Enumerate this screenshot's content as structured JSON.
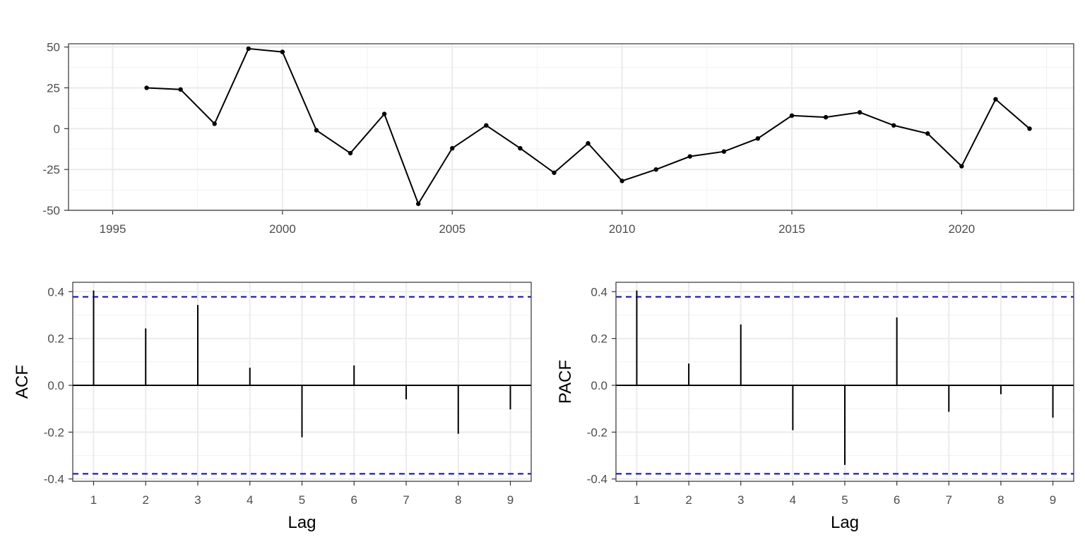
{
  "chart_data": [
    {
      "type": "line",
      "x": [
        1996,
        1997,
        1998,
        1999,
        2000,
        2001,
        2002,
        2003,
        2004,
        2005,
        2006,
        2007,
        2008,
        2009,
        2010,
        2011,
        2012,
        2013,
        2014,
        2015,
        2016,
        2017,
        2018,
        2019,
        2020,
        2021,
        2022
      ],
      "y": [
        25,
        24,
        3,
        49,
        47,
        -1,
        -15,
        9,
        -46,
        -12,
        2,
        -12,
        -27,
        -9,
        -32,
        -25,
        -17,
        -14,
        -6,
        8,
        7,
        10,
        2,
        -3,
        -23,
        18,
        0
      ],
      "xticks": [
        "1995",
        "2000",
        "2005",
        "2010",
        "2015",
        "2020"
      ],
      "yticks": [
        "-50",
        "-25",
        "0",
        "25",
        "50"
      ],
      "xlim": [
        1993.7,
        2023.3
      ],
      "ylim": [
        -50,
        52
      ],
      "xlabel": "",
      "ylabel": "",
      "grid": true
    },
    {
      "type": "bar",
      "categories": [
        "1",
        "2",
        "3",
        "4",
        "5",
        "6",
        "7",
        "8",
        "9"
      ],
      "values": [
        0.405,
        0.243,
        0.343,
        0.075,
        -0.222,
        0.085,
        -0.06,
        -0.207,
        -0.103
      ],
      "ci": 0.378,
      "ylabel": "ACF",
      "xlabel": "Lag",
      "yticks": [
        "-0.4",
        "-0.2",
        "0.0",
        "0.2",
        "0.4"
      ],
      "ylim": [
        -0.41,
        0.44
      ],
      "grid": true
    },
    {
      "type": "bar",
      "categories": [
        "1",
        "2",
        "3",
        "4",
        "5",
        "6",
        "7",
        "8",
        "9"
      ],
      "values": [
        0.405,
        0.093,
        0.26,
        -0.192,
        -0.34,
        0.29,
        -0.113,
        -0.038,
        -0.138
      ],
      "ci": 0.378,
      "ylabel": "PACF",
      "xlabel": "Lag",
      "yticks": [
        "-0.4",
        "-0.2",
        "0.0",
        "0.2",
        "0.4"
      ],
      "ylim": [
        -0.41,
        0.44
      ],
      "grid": true
    }
  ]
}
